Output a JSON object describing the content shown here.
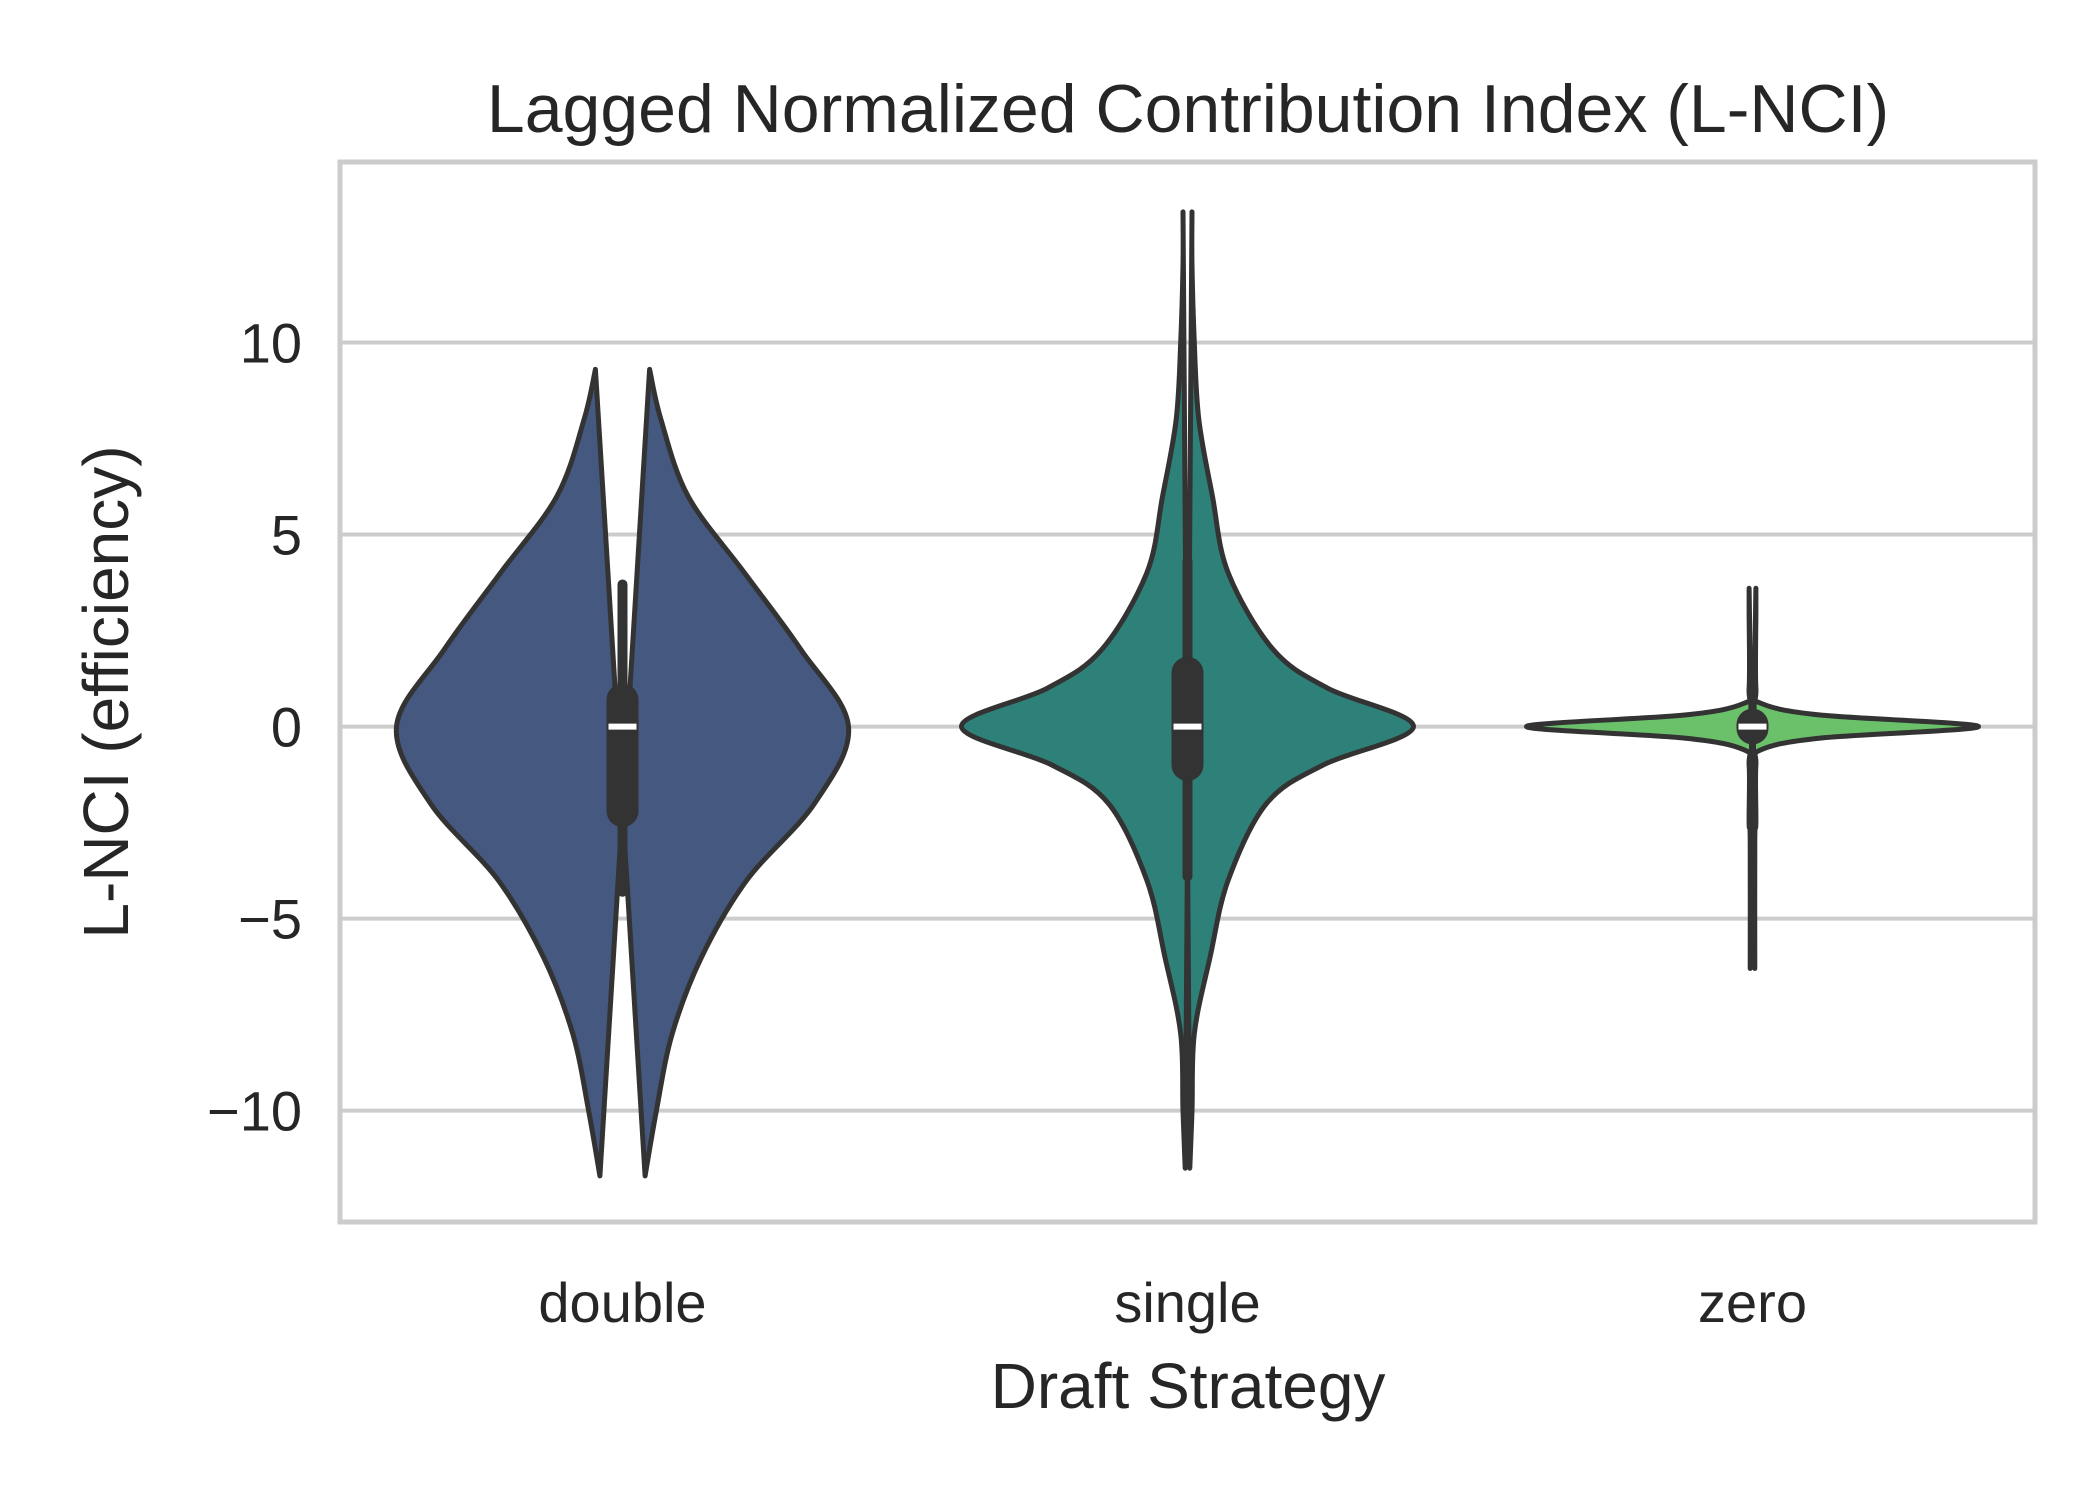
{
  "chart_data": {
    "type": "violin",
    "title": "Lagged Normalized Contribution Index (L-NCI)",
    "xlabel": "Draft Strategy",
    "ylabel": "L-NCI (efficiency)",
    "ylim": [
      -12.9,
      14.7
    ],
    "yticks": [
      -10,
      -5,
      0,
      5,
      10
    ],
    "ytick_labels": [
      "−10",
      "−5",
      "0",
      "5",
      "10"
    ],
    "grid": "horizontal",
    "categories": [
      "double",
      "single",
      "zero"
    ],
    "series": [
      {
        "category": "double",
        "color": "#45587f",
        "min": -11.7,
        "max": 9.3,
        "q1": -2.2,
        "median": 0.0,
        "q3": 0.7,
        "whisker_low": -4.3,
        "whisker_high": 3.7,
        "density": [
          [
            9.3,
            0.12
          ],
          [
            8,
            0.17
          ],
          [
            6,
            0.29
          ],
          [
            4,
            0.54
          ],
          [
            2,
            0.79
          ],
          [
            0,
            1.0
          ],
          [
            -2,
            0.85
          ],
          [
            -4,
            0.55
          ],
          [
            -6,
            0.35
          ],
          [
            -8,
            0.22
          ],
          [
            -10,
            0.15
          ],
          [
            -11.7,
            0.1
          ]
        ]
      },
      {
        "category": "single",
        "color": "#2e8179",
        "min": -11.5,
        "max": 13.4,
        "q1": -1.0,
        "median": 0.0,
        "q3": 1.4,
        "whisker_low": -3.9,
        "whisker_high": 4.3,
        "density": [
          [
            13.4,
            0.02
          ],
          [
            12,
            0.02
          ],
          [
            10,
            0.03
          ],
          [
            8,
            0.05
          ],
          [
            6,
            0.11
          ],
          [
            4,
            0.18
          ],
          [
            2,
            0.38
          ],
          [
            1,
            0.62
          ],
          [
            0,
            1.0
          ],
          [
            -1,
            0.6
          ],
          [
            -2,
            0.35
          ],
          [
            -4,
            0.18
          ],
          [
            -6,
            0.1
          ],
          [
            -8,
            0.03
          ],
          [
            -10,
            0.02
          ],
          [
            -11.5,
            0.01
          ]
        ]
      },
      {
        "category": "zero",
        "color": "#6ac16a",
        "min": -6.3,
        "max": 3.6,
        "q1": -0.05,
        "median": 0.0,
        "q3": 0.05,
        "whisker_low": -0.2,
        "whisker_high": 0.2,
        "density": [
          [
            3.6,
            0.015
          ],
          [
            3,
            0.015
          ],
          [
            1,
            0.015
          ],
          [
            0.6,
            0.04
          ],
          [
            0.3,
            0.3
          ],
          [
            0,
            1.0
          ],
          [
            -0.3,
            0.3
          ],
          [
            -0.6,
            0.04
          ],
          [
            -1,
            0.015
          ],
          [
            -2.5,
            0.015
          ],
          [
            -3,
            0.01
          ],
          [
            -6.3,
            0.01
          ]
        ]
      }
    ]
  }
}
